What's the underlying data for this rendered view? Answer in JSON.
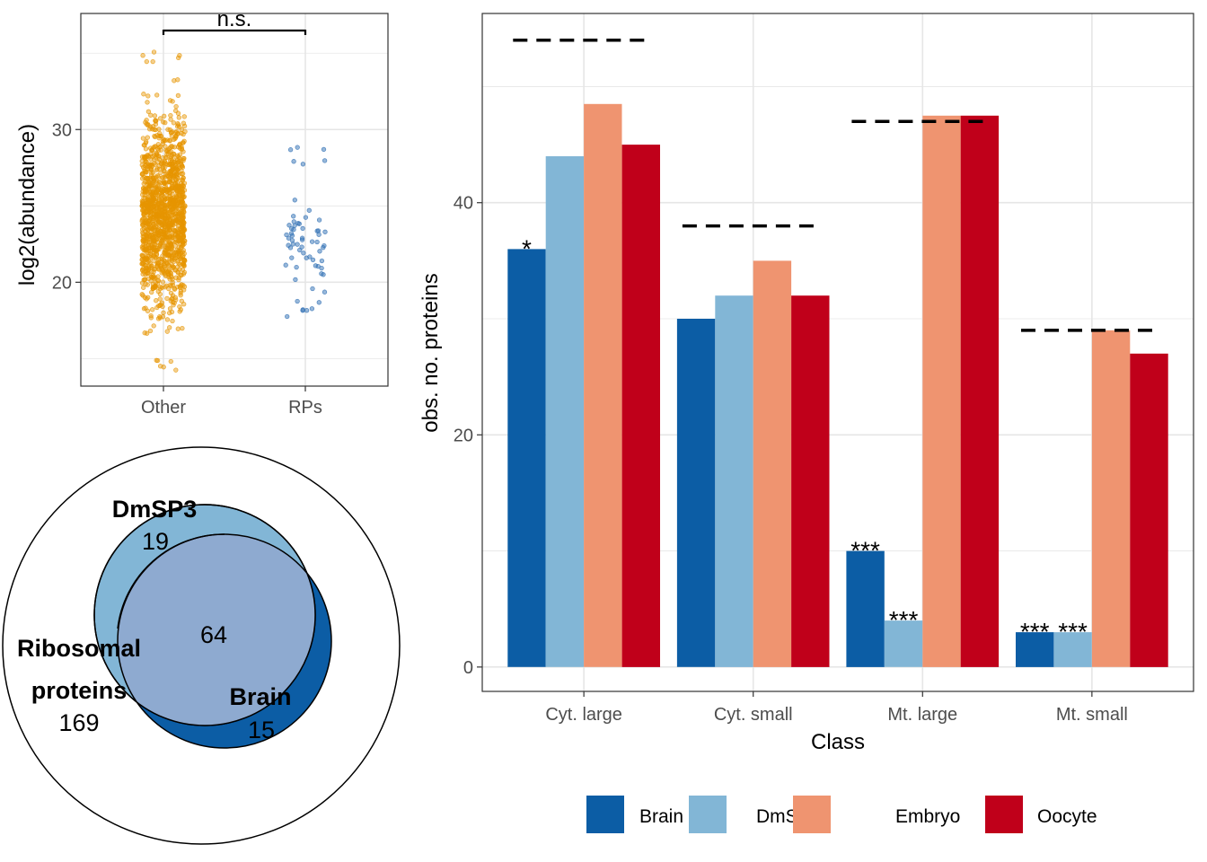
{
  "colors": {
    "brain": "#0C5DA5",
    "dmsp3": "#82B6D6",
    "embryo": "#EF9470",
    "oocyte": "#C0001A",
    "other_points": "#E69500",
    "rp_points": "#2F6FB4",
    "venn_overlap": "#8EAAD0",
    "grid": "#E6E6E6"
  },
  "chart_data": [
    {
      "type": "scatter",
      "panel": "abundance",
      "ylabel": "log2(abundance)",
      "xlabel": "",
      "categories": [
        "Other",
        "RPs"
      ],
      "ylim": [
        13.2,
        37.6
      ],
      "yticks": [
        20,
        30
      ],
      "grid": true,
      "annotation": "n.s.",
      "groups": [
        {
          "name": "Other",
          "range": [
            14,
            35.5
          ],
          "center": 24.5,
          "spread": 3.0,
          "n": 1400
        },
        {
          "name": "RPs",
          "range": [
            17.6,
            29.2
          ],
          "center": 22.5,
          "spread": 1.3,
          "n": 64
        }
      ]
    },
    {
      "type": "bar",
      "panel": "rp_counts",
      "xlabel": "Class",
      "ylabel": "obs. no. proteins",
      "categories": [
        "Cyt. large",
        "Cyt. small",
        "Mt. large",
        "Mt. small"
      ],
      "ylim": [
        -2.1,
        56.3
      ],
      "yticks": [
        0,
        20,
        40
      ],
      "grid": true,
      "legend_position": "bottom",
      "series": [
        {
          "name": "Brain",
          "values": [
            36,
            30,
            10,
            3
          ],
          "labels": [
            "*",
            "",
            "***",
            "***"
          ]
        },
        {
          "name": "DmSP3",
          "values": [
            44,
            32,
            4,
            3
          ],
          "labels": [
            "",
            "",
            "***",
            "***"
          ]
        },
        {
          "name": "Embryo",
          "values": [
            48.5,
            35,
            47.5,
            29
          ],
          "labels": [
            "",
            "",
            "",
            ""
          ]
        },
        {
          "name": "Oocyte",
          "values": [
            45,
            32,
            47.5,
            27
          ],
          "labels": [
            "",
            "",
            "",
            ""
          ]
        }
      ],
      "expected": [
        54,
        38,
        47,
        29
      ]
    },
    {
      "type": "venn",
      "panel": "overlap",
      "sets": [
        {
          "name": "Ribosomal\nproteins",
          "line1": "Ribosomal",
          "line2": "proteins",
          "count": 169
        },
        {
          "name": "DmSP3",
          "count": 19
        },
        {
          "name": "Brain",
          "count": 15
        }
      ],
      "intersection": 64
    }
  ]
}
